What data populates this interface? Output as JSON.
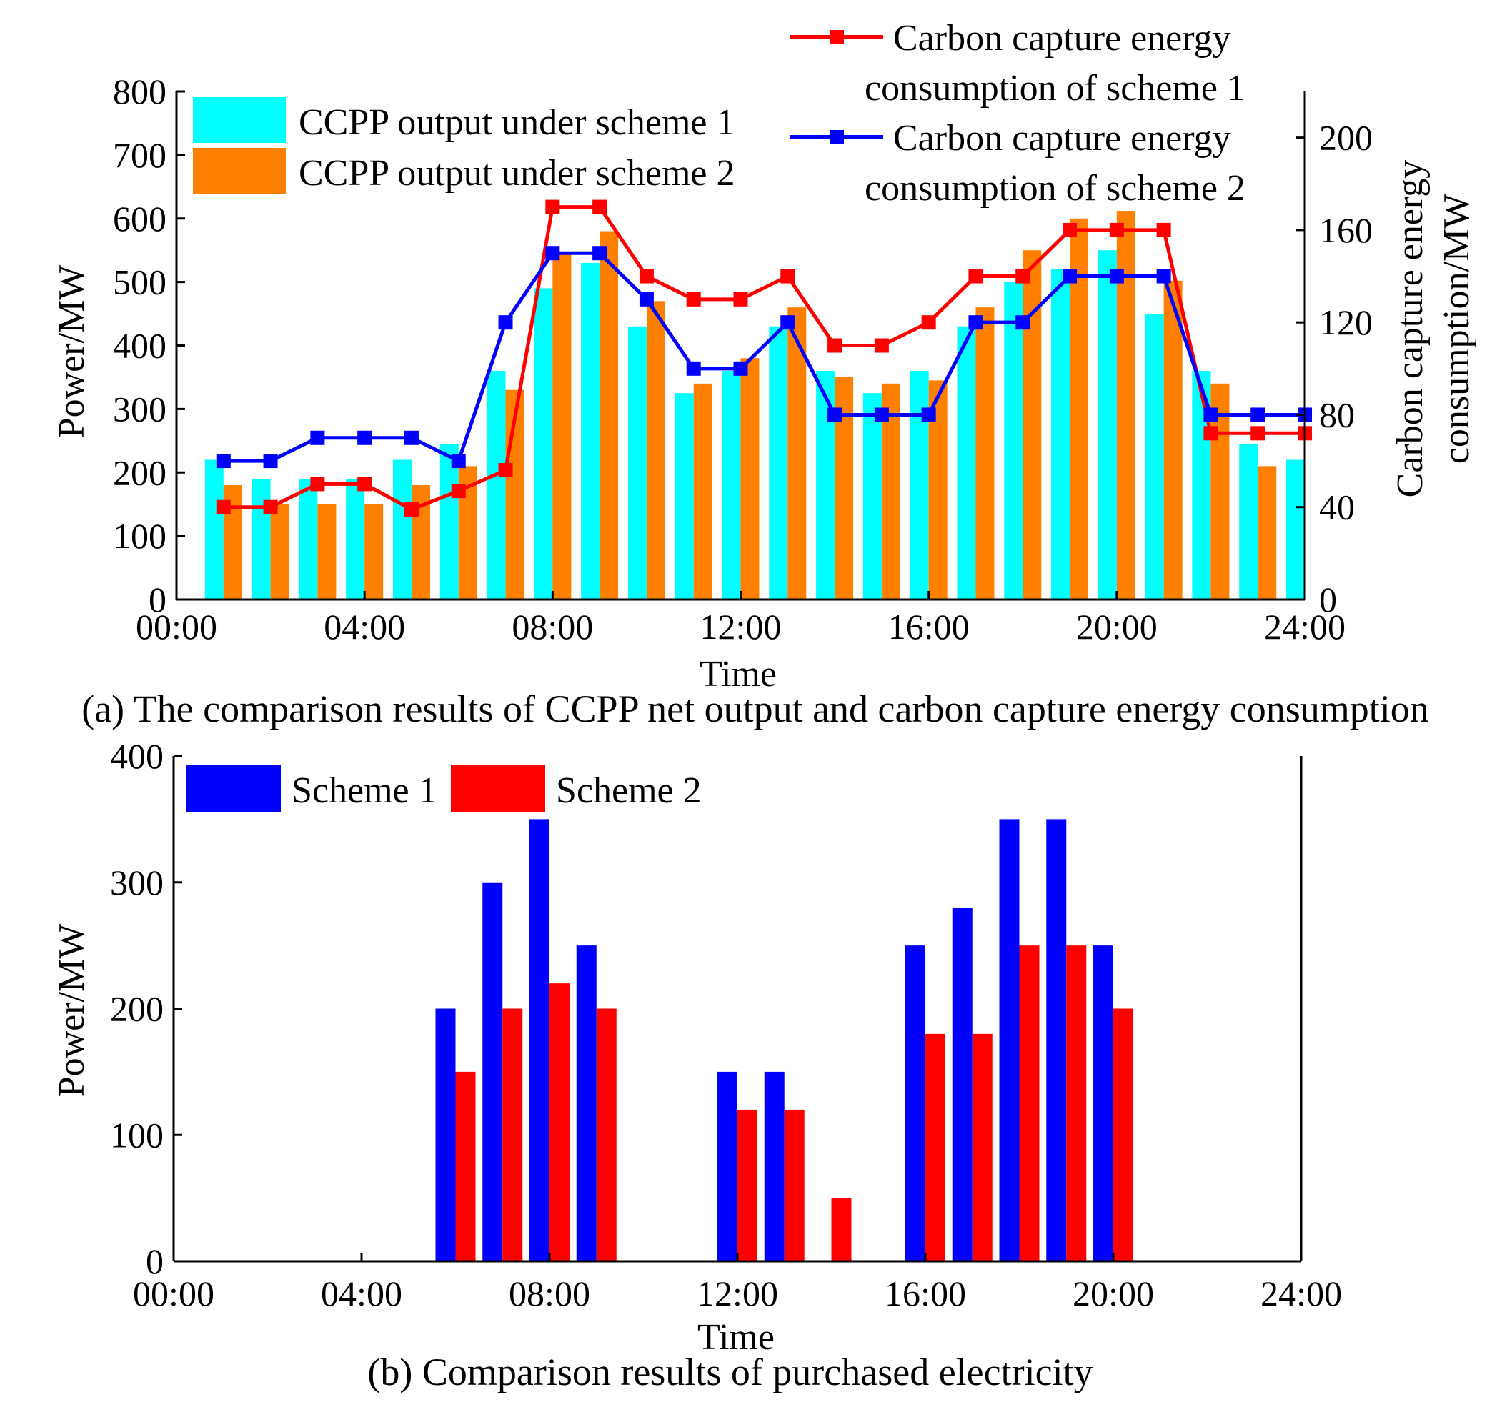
{
  "chart_data": [
    {
      "id": "a",
      "type": "bar+line",
      "caption": "(a) The comparison results of CCPP net output and carbon capture energy consumption",
      "xlabel": "Time",
      "ylabel": "Power/MW",
      "y2label_line1": "Carbon capture energy",
      "y2label_line2": "consumption/MW",
      "xlim": [
        0,
        24
      ],
      "ylim": [
        0,
        800
      ],
      "y2lim": [
        0,
        220
      ],
      "xticks": [
        0,
        4,
        8,
        12,
        16,
        20,
        24
      ],
      "xtick_labels": [
        "00:00",
        "04:00",
        "08:00",
        "12:00",
        "16:00",
        "20:00",
        "24:00"
      ],
      "yticks": [
        0,
        100,
        200,
        300,
        400,
        500,
        600,
        700,
        800
      ],
      "y2ticks": [
        0,
        40,
        80,
        120,
        160,
        200
      ],
      "hours": [
        1,
        2,
        3,
        4,
        5,
        6,
        7,
        8,
        9,
        10,
        11,
        12,
        13,
        14,
        15,
        16,
        17,
        18,
        19,
        20,
        21,
        22,
        23,
        24
      ],
      "bar_series": [
        {
          "name": "CCPP output under scheme 1",
          "color": "#00FFFF",
          "values": [
            220,
            190,
            190,
            190,
            220,
            245,
            360,
            490,
            530,
            430,
            325,
            360,
            430,
            360,
            325,
            360,
            430,
            500,
            520,
            550,
            450,
            360,
            245,
            220
          ]
        },
        {
          "name": "CCPP output under scheme 2",
          "color": "#FF8000",
          "values": [
            180,
            150,
            150,
            150,
            180,
            210,
            330,
            545,
            580,
            470,
            340,
            380,
            460,
            350,
            340,
            345,
            460,
            550,
            600,
            612,
            502,
            340,
            210,
            0
          ]
        }
      ],
      "line_series": [
        {
          "name_line1": "Carbon capture energy",
          "name_line2": "consumption of scheme 1",
          "color": "#FF0000",
          "axis": "right",
          "values": [
            40,
            40,
            50,
            50,
            39,
            47,
            56,
            170,
            170,
            140,
            130,
            130,
            140,
            110,
            110,
            120,
            140,
            140,
            160,
            160,
            160,
            72,
            72,
            72
          ]
        },
        {
          "name_line1": "Carbon capture energy",
          "name_line2": "consumption of scheme 2",
          "color": "#0000FF",
          "axis": "right",
          "values": [
            60,
            60,
            70,
            70,
            70,
            60,
            120,
            150,
            150,
            130,
            100,
            100,
            120,
            80,
            80,
            80,
            120,
            120,
            140,
            140,
            140,
            80,
            80,
            80
          ]
        }
      ]
    },
    {
      "id": "b",
      "type": "bar",
      "caption": "(b) Comparison results of purchased electricity",
      "xlabel": "Time",
      "ylabel": "Power/MW",
      "xlim": [
        0,
        24
      ],
      "ylim": [
        0,
        400
      ],
      "xticks": [
        0,
        4,
        8,
        12,
        16,
        20,
        24
      ],
      "xtick_labels": [
        "00:00",
        "04:00",
        "08:00",
        "12:00",
        "16:00",
        "20:00",
        "24:00"
      ],
      "yticks": [
        0,
        100,
        200,
        300,
        400
      ],
      "hours": [
        1,
        2,
        3,
        4,
        5,
        6,
        7,
        8,
        9,
        10,
        11,
        12,
        13,
        14,
        15,
        16,
        17,
        18,
        19,
        20,
        21,
        22,
        23,
        24
      ],
      "series": [
        {
          "name": "Scheme 1",
          "color": "#0000FF",
          "values": [
            0,
            0,
            0,
            0,
            0,
            200,
            300,
            350,
            250,
            0,
            0,
            150,
            150,
            0,
            0,
            250,
            280,
            350,
            350,
            250,
            0,
            0,
            0,
            0
          ]
        },
        {
          "name": "Scheme 2",
          "color": "#FF0000",
          "values": [
            0,
            0,
            0,
            0,
            0,
            150,
            200,
            220,
            200,
            0,
            0,
            120,
            120,
            50,
            0,
            180,
            180,
            250,
            250,
            200,
            0,
            0,
            0,
            0
          ]
        }
      ]
    }
  ]
}
